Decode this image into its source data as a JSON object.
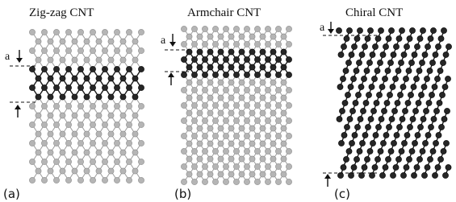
{
  "panels": [
    {
      "title": "Zig-zag CNT",
      "marker": "a",
      "label": "(a)"
    },
    {
      "title": "Armchair CNT",
      "marker": "a",
      "label": "(b)"
    },
    {
      "title": "Chiral CNT",
      "marker": "a",
      "label": "(c)"
    }
  ]
}
